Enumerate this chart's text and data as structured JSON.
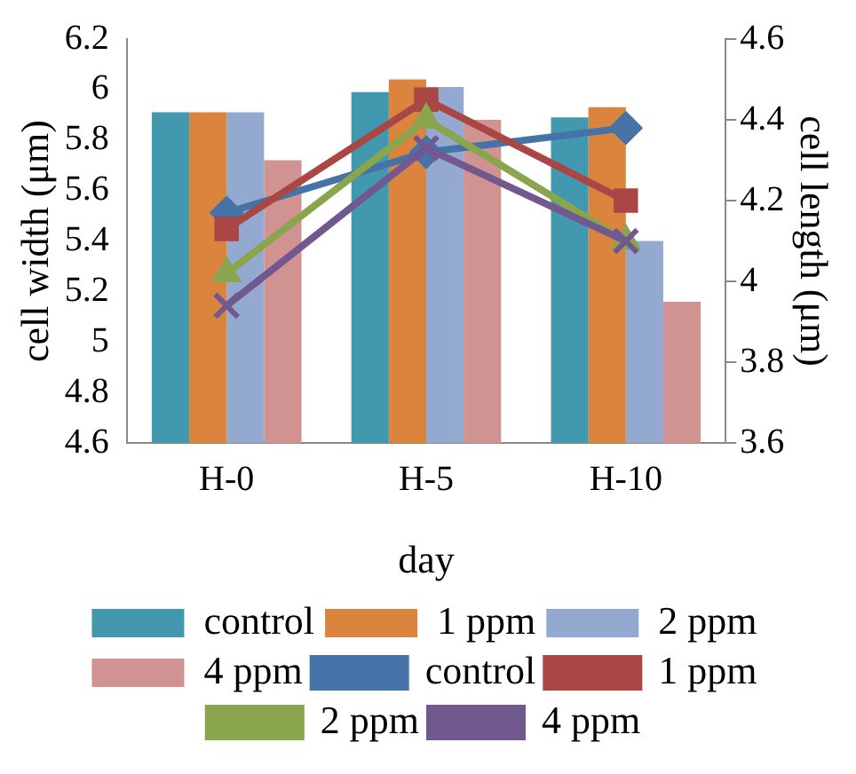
{
  "chart_data": {
    "type": "bar",
    "xlabel": "day",
    "ylabel": "cell width (μm)",
    "y2label": "cell length (μm)",
    "categories": [
      "H-0",
      "H-5",
      "H-10"
    ],
    "ylim": [
      4.6,
      6.2
    ],
    "yticks": [
      4.6,
      4.8,
      5,
      5.2,
      5.4,
      5.6,
      5.8,
      6,
      6.2
    ],
    "y2lim": [
      3.6,
      4.6
    ],
    "y2ticks": [
      3.6,
      3.8,
      4,
      4.2,
      4.4,
      4.6
    ],
    "grid": false,
    "legend": "bottom",
    "series": [
      {
        "name": "control",
        "color": "#4198af",
        "values": [
          5.91,
          5.99,
          5.89
        ]
      },
      {
        "name": "1 ppm",
        "color": "#db843d",
        "values": [
          5.91,
          6.04,
          5.93
        ]
      },
      {
        "name": "2 ppm",
        "color": "#93a9cf",
        "values": [
          5.91,
          6.01,
          5.4
        ]
      },
      {
        "name": "4 ppm",
        "color": "#d19392",
        "values": [
          5.72,
          5.88,
          5.16
        ]
      },
      {
        "name": "control",
        "type": "line",
        "axis": "y2",
        "marker": "diamond",
        "color": "#4572a7",
        "values": [
          4.17,
          4.32,
          4.38
        ]
      },
      {
        "name": "1 ppm",
        "type": "line",
        "axis": "y2",
        "marker": "square",
        "color": "#aa4643",
        "values": [
          4.13,
          4.45,
          4.2
        ]
      },
      {
        "name": "2 ppm",
        "type": "line",
        "axis": "y2",
        "marker": "triangle",
        "color": "#89a54e",
        "values": [
          4.02,
          4.4,
          4.1
        ]
      },
      {
        "name": "4 ppm",
        "type": "line",
        "axis": "y2",
        "marker": "cross",
        "color": "#71588f",
        "values": [
          3.94,
          4.33,
          4.1
        ]
      }
    ]
  }
}
